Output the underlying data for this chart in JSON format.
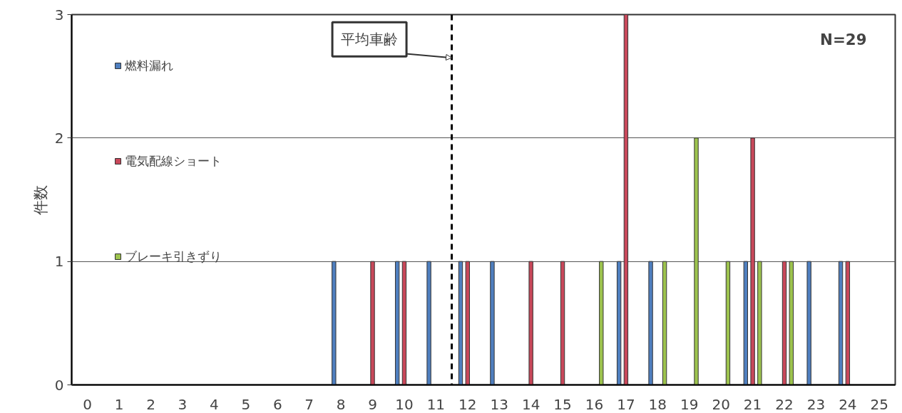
{
  "chart_data": {
    "type": "bar",
    "ylabel": "件数",
    "x": [
      0,
      1,
      2,
      3,
      4,
      5,
      6,
      7,
      8,
      9,
      10,
      11,
      12,
      13,
      14,
      15,
      16,
      17,
      18,
      19,
      20,
      21,
      22,
      23,
      24,
      25
    ],
    "series": [
      {
        "name": "燃料漏れ",
        "color": "#4f7fbf",
        "values": [
          0,
          0,
          0,
          0,
          0,
          0,
          0,
          0,
          1,
          0,
          1,
          1,
          1,
          1,
          0,
          0,
          0,
          1,
          1,
          0,
          0,
          1,
          0,
          1,
          1,
          0
        ]
      },
      {
        "name": "電気配線ショート",
        "color": "#c8485a",
        "values": [
          0,
          0,
          0,
          0,
          0,
          0,
          0,
          0,
          0,
          1,
          1,
          0,
          1,
          0,
          1,
          1,
          0,
          3,
          0,
          0,
          0,
          2,
          1,
          0,
          1,
          0
        ]
      },
      {
        "name": "ブレーキ引きずり",
        "color": "#9dc34e",
        "values": [
          0,
          0,
          0,
          0,
          0,
          0,
          0,
          0,
          0,
          0,
          0,
          0,
          0,
          0,
          0,
          0,
          1,
          0,
          1,
          2,
          1,
          1,
          1,
          0,
          0,
          0
        ]
      }
    ],
    "xlim": [
      -0.5,
      25.5
    ],
    "xticks": [
      0,
      1,
      2,
      3,
      4,
      5,
      6,
      7,
      8,
      9,
      10,
      11,
      12,
      13,
      14,
      15,
      16,
      17,
      18,
      19,
      20,
      21,
      22,
      23,
      24,
      25
    ],
    "ylim": [
      0,
      3
    ],
    "yticks": [
      0,
      1,
      2,
      3
    ],
    "grid": "y",
    "legend": "top left",
    "ref_lines": [
      {
        "axis": "x",
        "value": 11.5,
        "line_style": "dashed",
        "color": "#000000"
      }
    ],
    "annotations": [
      {
        "text": "平均車齢",
        "x": 11.5,
        "y": 2.65
      },
      "N=29"
    ]
  }
}
